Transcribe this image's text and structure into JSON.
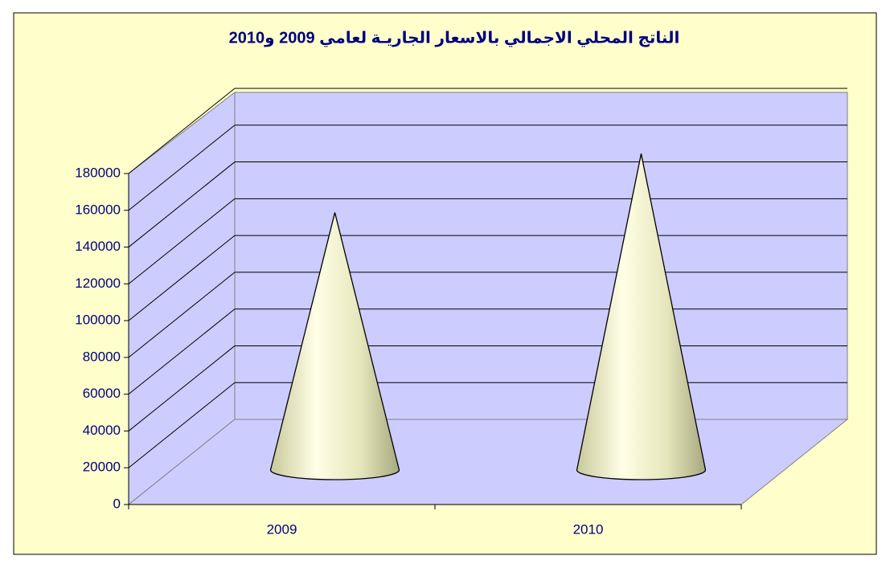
{
  "chart_data": {
    "type": "cone3d",
    "title": "الناتج المحلي الاجمالي بالاسعار الجاريـة لعامي 2009 و2010",
    "categories": [
      "2009",
      "2010"
    ],
    "values": [
      140000,
      172000
    ],
    "color": "#e8e8c0",
    "ylim": [
      0,
      180000
    ],
    "yticks": [
      0,
      20000,
      40000,
      60000,
      80000,
      100000,
      120000,
      140000,
      160000,
      180000
    ],
    "grid": true
  }
}
